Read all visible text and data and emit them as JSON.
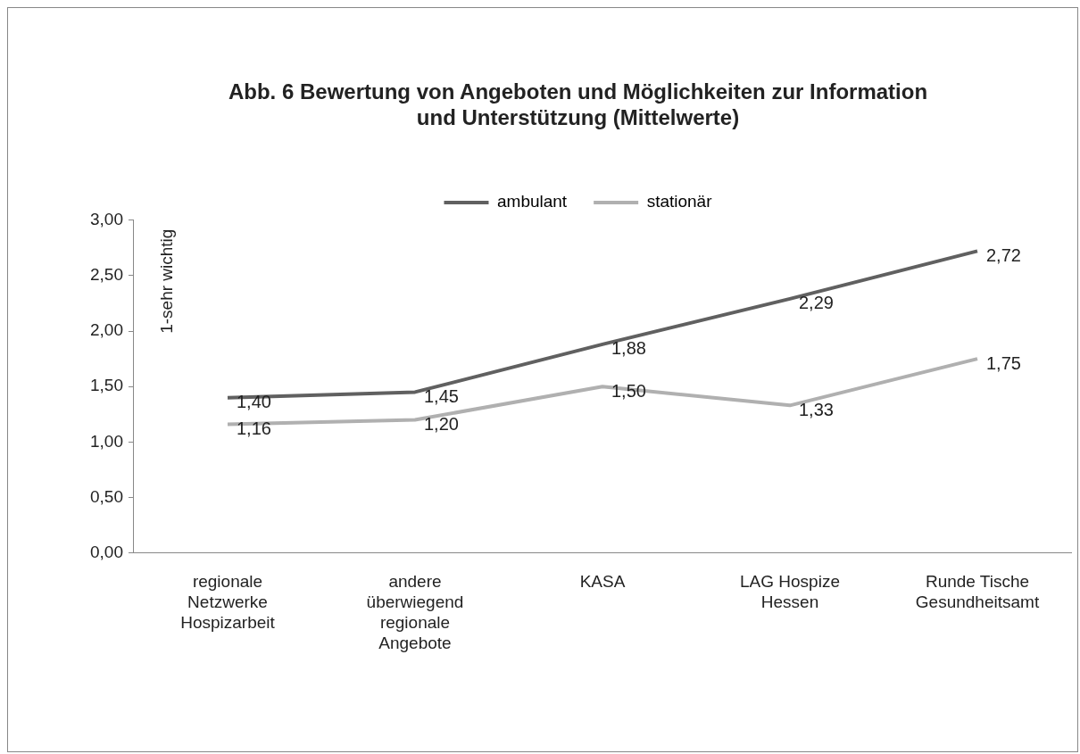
{
  "chart_data": {
    "type": "line",
    "title": "Abb. 6 Bewertung von Angeboten und Möglichkeiten zur Information\nund Unterstützung (Mittelwerte)",
    "ylabel": "1-sehr wichtig",
    "categories": [
      "regionale Netzwerke Hospizarbeit",
      "andere überwiegend regionale Angebote",
      "KASA",
      "LAG Hospize Hessen",
      "Runde Tische Gesundheitsamt"
    ],
    "series": [
      {
        "name": "ambulant",
        "color": "#606060",
        "values": [
          1.4,
          1.45,
          1.88,
          2.29,
          2.72
        ],
        "value_labels": [
          "1,40",
          "1,45",
          "1,88",
          "2,29",
          "2,72"
        ]
      },
      {
        "name": "stationär",
        "color": "#b0b0b0",
        "values": [
          1.16,
          1.2,
          1.5,
          1.33,
          1.75
        ],
        "value_labels": [
          "1,16",
          "1,20",
          "1,50",
          "1,33",
          "1,75"
        ]
      }
    ],
    "ylim": [
      0,
      3
    ],
    "yticks": [
      {
        "value": 0,
        "label": "0,00"
      },
      {
        "value": 0.5,
        "label": "0,50"
      },
      {
        "value": 1,
        "label": "1,00"
      },
      {
        "value": 1.5,
        "label": "1,50"
      },
      {
        "value": 2,
        "label": "2,00"
      },
      {
        "value": 2.5,
        "label": "2,50"
      },
      {
        "value": 3,
        "label": "3,00"
      }
    ],
    "grid": false,
    "legend": "top",
    "marker": "none",
    "line_style": "solid"
  }
}
